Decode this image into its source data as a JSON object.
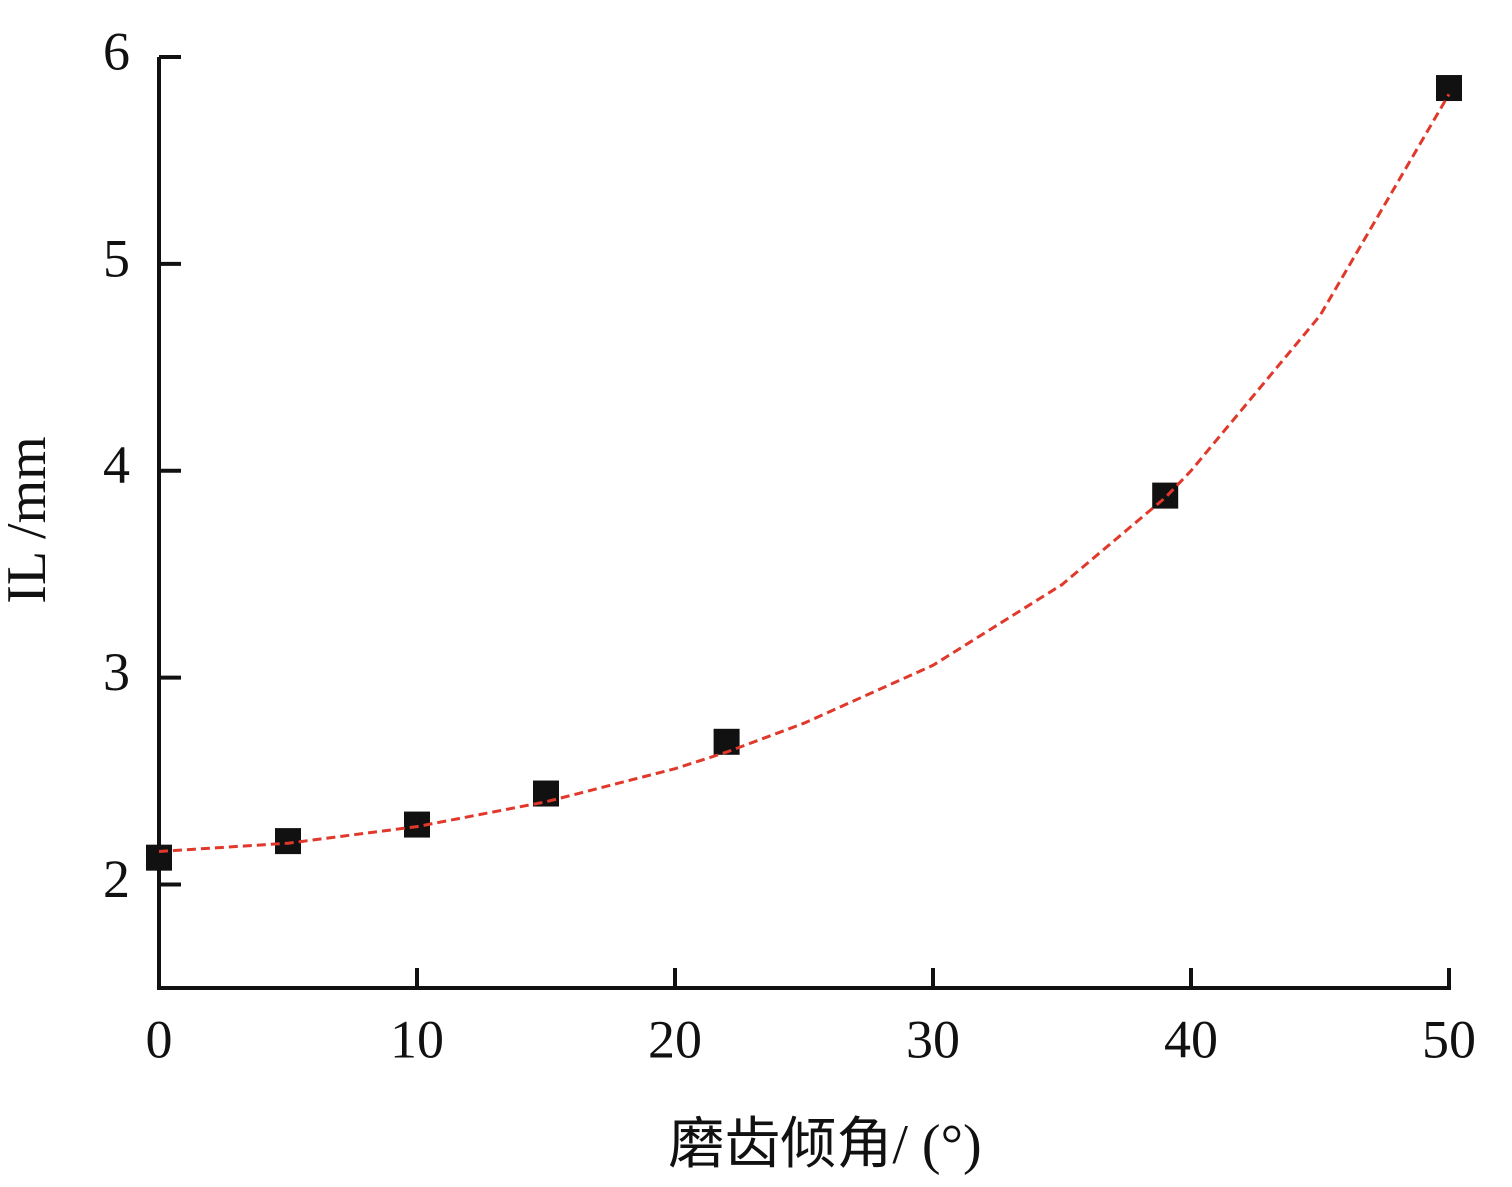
{
  "chart_data": {
    "type": "scatter",
    "x_label": "磨齿倾角/ (°)",
    "y_label": "IL /mm",
    "xlim": [
      0,
      50
    ],
    "xticks": [
      0,
      10,
      20,
      30,
      40,
      50
    ],
    "ylim": [
      1.5,
      6
    ],
    "yticks": [
      2,
      3,
      4,
      5,
      6
    ],
    "series": [
      {
        "type": "scatter",
        "color": "#111111",
        "x": [
          0,
          5,
          10,
          15,
          22,
          39,
          50
        ],
        "values": [
          2.13,
          2.21,
          2.29,
          2.44,
          2.69,
          3.88,
          5.85
        ]
      },
      {
        "type": "line",
        "color": "#e0392b",
        "dashed": true,
        "x": [
          0,
          5,
          10,
          15,
          20,
          22,
          25,
          30,
          35,
          39,
          40,
          45,
          50
        ],
        "values": [
          2.16,
          2.2,
          2.28,
          2.4,
          2.56,
          2.64,
          2.78,
          3.06,
          3.45,
          3.87,
          4.0,
          4.75,
          5.82
        ]
      }
    ]
  }
}
